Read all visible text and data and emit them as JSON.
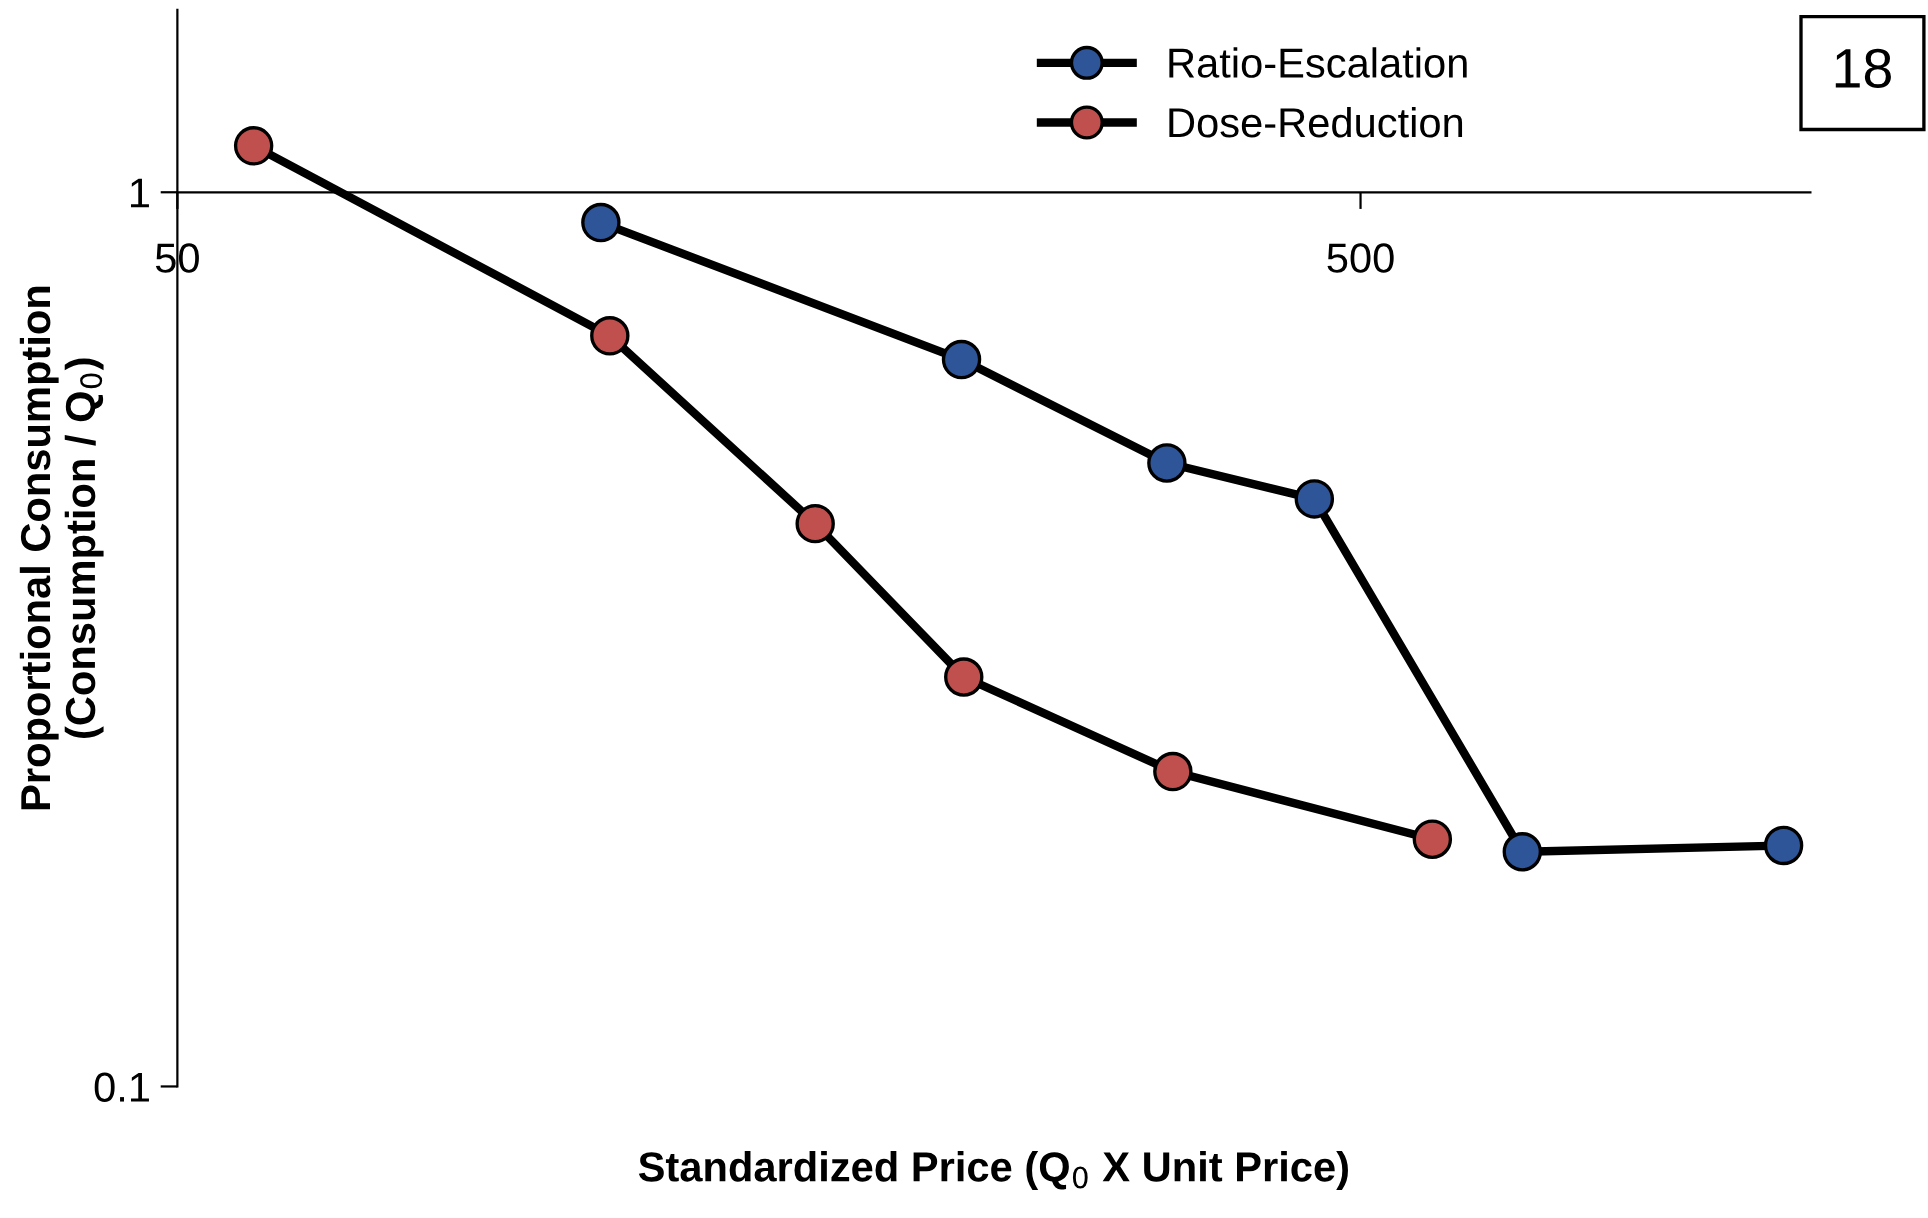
{
  "chart_data": {
    "type": "line",
    "xlabel": "Standardized Price (Q$_{0}$ X Unit Price)",
    "ylabel": "Proportional Consumption\n(Consumption / Q$_{0}$)",
    "log": "xy",
    "xlim": [
      50,
      1200
    ],
    "xticks": [
      50,
      500
    ],
    "ylim": [
      0.1,
      1.6
    ],
    "yticks": [
      0.1,
      1
    ],
    "grid": false,
    "legend": "top",
    "marker": "circle",
    "line_style": "solid",
    "annotations": [
      "18"
    ],
    "series": [
      {
        "name": "Ratio-Escalation",
        "color": "#2e5597",
        "x": [
          114,
          230,
          343,
          457,
          685,
          1139
        ],
        "values": [
          0.925,
          0.65,
          0.498,
          0.454,
          0.183,
          0.186
        ]
      },
      {
        "name": "Dose-Reduction",
        "color": "#c0504d",
        "x": [
          58,
          116,
          173,
          231,
          347,
          575
        ],
        "values": [
          1.127,
          0.691,
          0.426,
          0.287,
          0.225,
          0.189
        ]
      }
    ]
  }
}
